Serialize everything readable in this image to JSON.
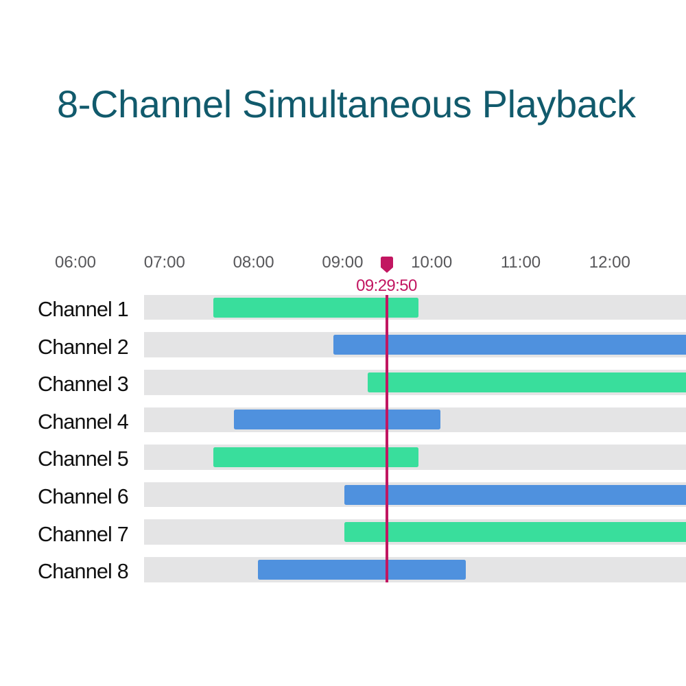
{
  "title": {
    "text": "8-Channel Simultaneous Playback",
    "color": "#115a6c"
  },
  "chart_data": {
    "type": "gantt",
    "description": "Timeline of recorded footage playing back simultaneously on 8 NVR channels",
    "time_axis": {
      "tick_labels": [
        "06:00",
        "07:00",
        "08:00",
        "09:00",
        "10:00",
        "11:00",
        "12:00"
      ],
      "start": "06:00",
      "tick_interval_minutes": 60,
      "label_color": "#57575a"
    },
    "playhead": {
      "time": "09:29:50",
      "color": "#c21661"
    },
    "palette": {
      "green": "#39de9c",
      "blue": "#4f91de",
      "track": "#e4e4e5"
    },
    "categories": [
      "Channel 1",
      "Channel 2",
      "Channel 3",
      "Channel 4",
      "Channel 5",
      "Channel 6",
      "Channel 7",
      "Channel 8"
    ],
    "rows": [
      {
        "channel": "Channel 1",
        "bar": {
          "color": "green",
          "start": "07:33",
          "end": "09:51",
          "to_edge": false
        }
      },
      {
        "channel": "Channel 2",
        "bar": {
          "color": "blue",
          "start": "08:54",
          "end": null,
          "to_edge": true
        }
      },
      {
        "channel": "Channel 3",
        "bar": {
          "color": "green",
          "start": "09:17",
          "end": null,
          "to_edge": true
        }
      },
      {
        "channel": "Channel 4",
        "bar": {
          "color": "blue",
          "start": "07:47",
          "end": "10:06",
          "to_edge": false
        }
      },
      {
        "channel": "Channel 5",
        "bar": {
          "color": "green",
          "start": "07:33",
          "end": "09:51",
          "to_edge": false
        }
      },
      {
        "channel": "Channel 6",
        "bar": {
          "color": "blue",
          "start": "09:01",
          "end": null,
          "to_edge": true
        }
      },
      {
        "channel": "Channel 7",
        "bar": {
          "color": "green",
          "start": "09:01",
          "end": null,
          "to_edge": true
        }
      },
      {
        "channel": "Channel 8",
        "bar": {
          "color": "blue",
          "start": "08:03",
          "end": "10:23",
          "to_edge": false
        }
      }
    ]
  }
}
